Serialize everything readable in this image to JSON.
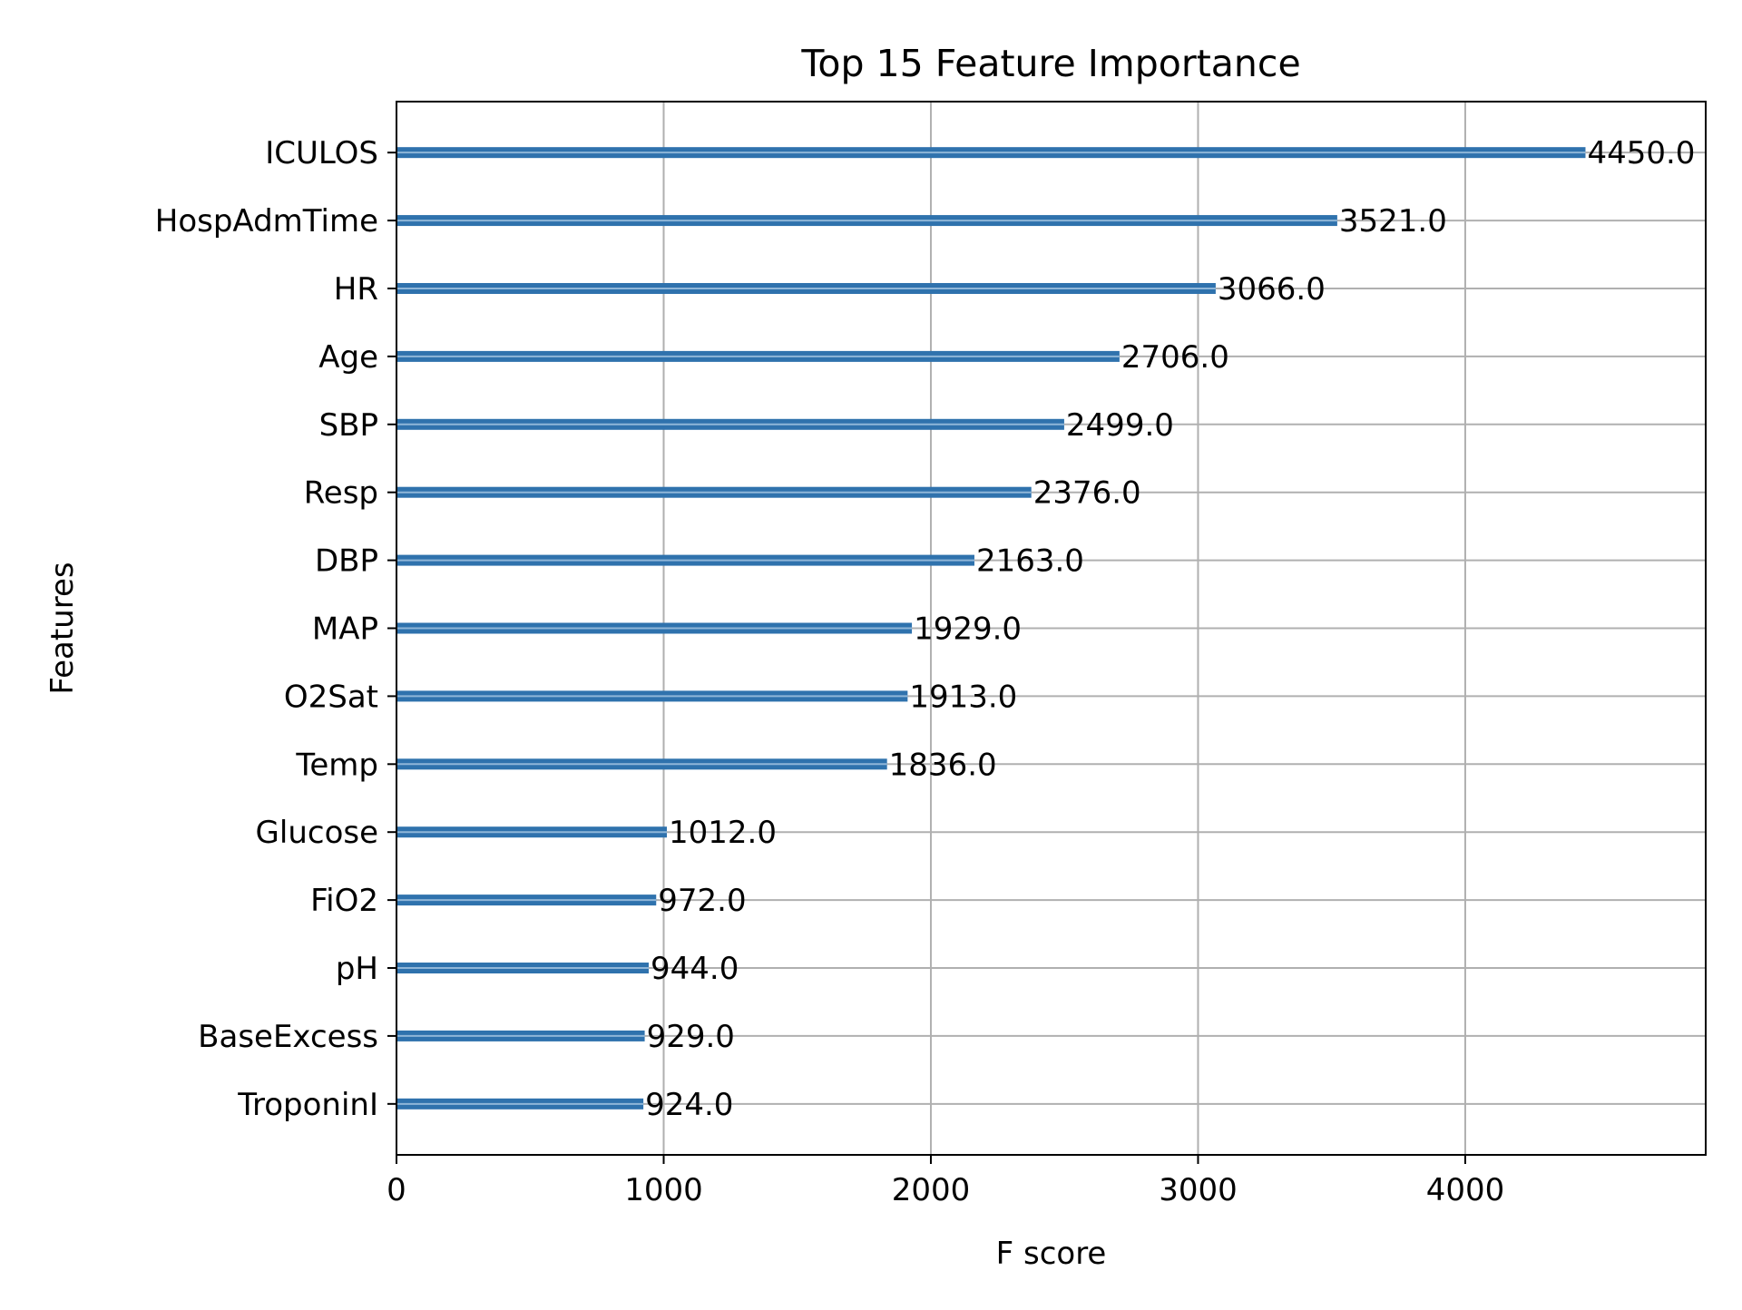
{
  "chart_data": {
    "type": "bar",
    "orientation": "horizontal",
    "title": "Top 15 Feature Importance",
    "xlabel": "F score",
    "ylabel": "Features",
    "xlim": [
      0,
      4900
    ],
    "xticks": [
      0,
      1000,
      2000,
      3000,
      4000
    ],
    "grid": true,
    "categories": [
      "TroponinI",
      "BaseExcess",
      "pH",
      "FiO2",
      "Glucose",
      "Temp",
      "O2Sat",
      "MAP",
      "DBP",
      "Resp",
      "SBP",
      "Age",
      "HR",
      "HospAdmTime",
      "ICULOS"
    ],
    "values": [
      924.0,
      929.0,
      944.0,
      972.0,
      1012.0,
      1836.0,
      1913.0,
      1929.0,
      2163.0,
      2376.0,
      2499.0,
      2706.0,
      3066.0,
      3521.0,
      4450.0
    ],
    "value_labels": [
      "924.0",
      "929.0",
      "944.0",
      "972.0",
      "1012.0",
      "1836.0",
      "1913.0",
      "1929.0",
      "2163.0",
      "2376.0",
      "2499.0",
      "2706.0",
      "3066.0",
      "3521.0",
      "4450.0"
    ],
    "colors": {
      "bar": "#2f72ad",
      "bar_highlight": "#8fb6d8",
      "grid": "#b0b0b0",
      "axis": "#000000"
    }
  }
}
